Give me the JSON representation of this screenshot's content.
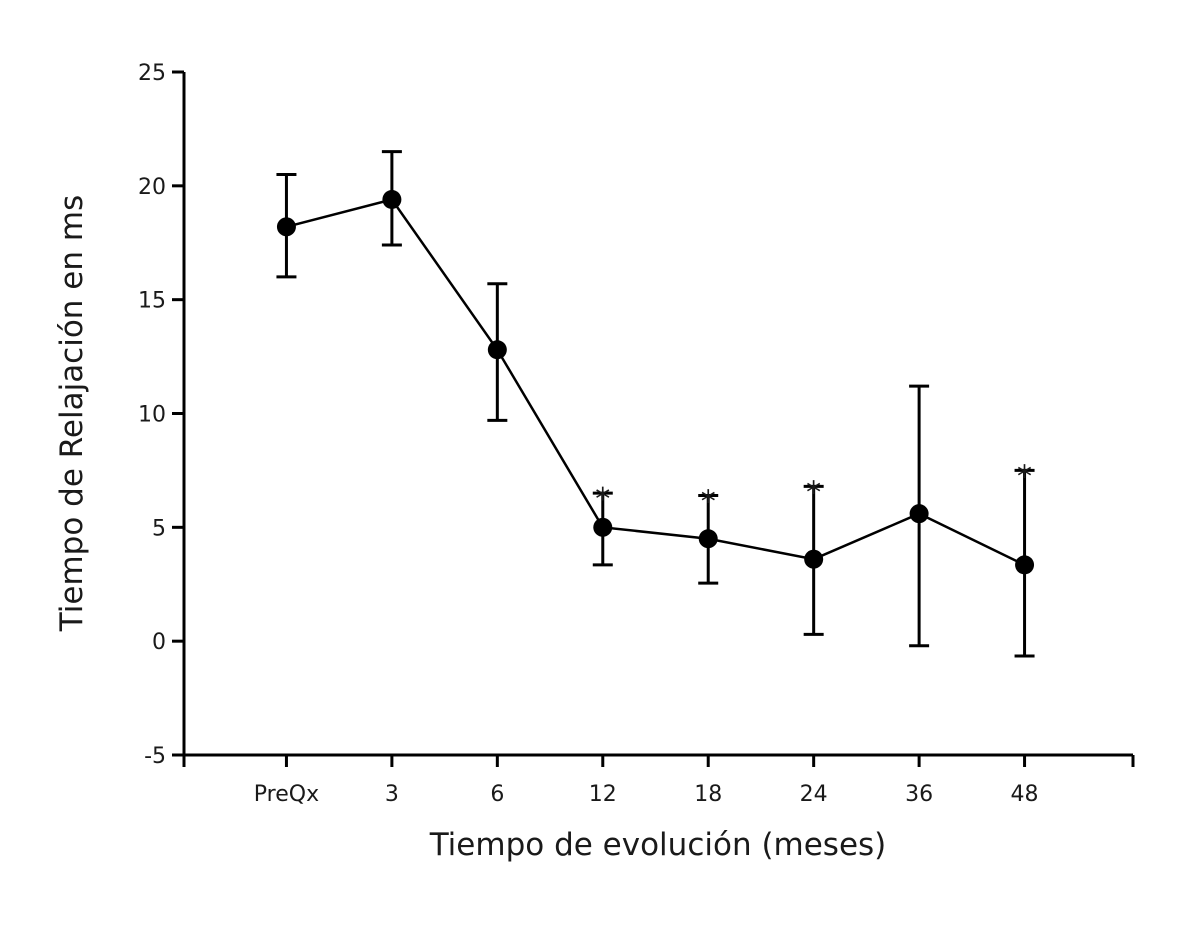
{
  "chart_data": {
    "type": "line",
    "title": "",
    "xlabel": "Tiempo de evolución (meses)",
    "ylabel": "Tiempo de Relajación en ms",
    "categories": [
      "PreQx",
      "3",
      "6",
      "12",
      "18",
      "24",
      "36",
      "48"
    ],
    "ylim": [
      -5,
      25
    ],
    "yticks": [
      -5,
      0,
      5,
      10,
      15,
      20,
      25
    ],
    "ytick_labels": [
      "-5",
      "0",
      "5",
      "10",
      "15",
      "20",
      "25"
    ],
    "grid": false,
    "legend": null,
    "series": [
      {
        "name": "Tiempo de Relajación",
        "color": "#000000",
        "values": [
          18.2,
          19.4,
          12.8,
          5.0,
          4.5,
          3.6,
          5.6,
          3.35
        ],
        "error_upper": [
          20.5,
          21.5,
          15.7,
          6.5,
          6.4,
          6.8,
          11.2,
          7.5
        ],
        "error_lower": [
          16.0,
          17.4,
          9.7,
          3.35,
          2.55,
          0.3,
          -0.2,
          -0.65
        ],
        "significance": [
          "",
          "",
          "",
          "*",
          "*",
          "*",
          "",
          "*"
        ]
      }
    ]
  }
}
